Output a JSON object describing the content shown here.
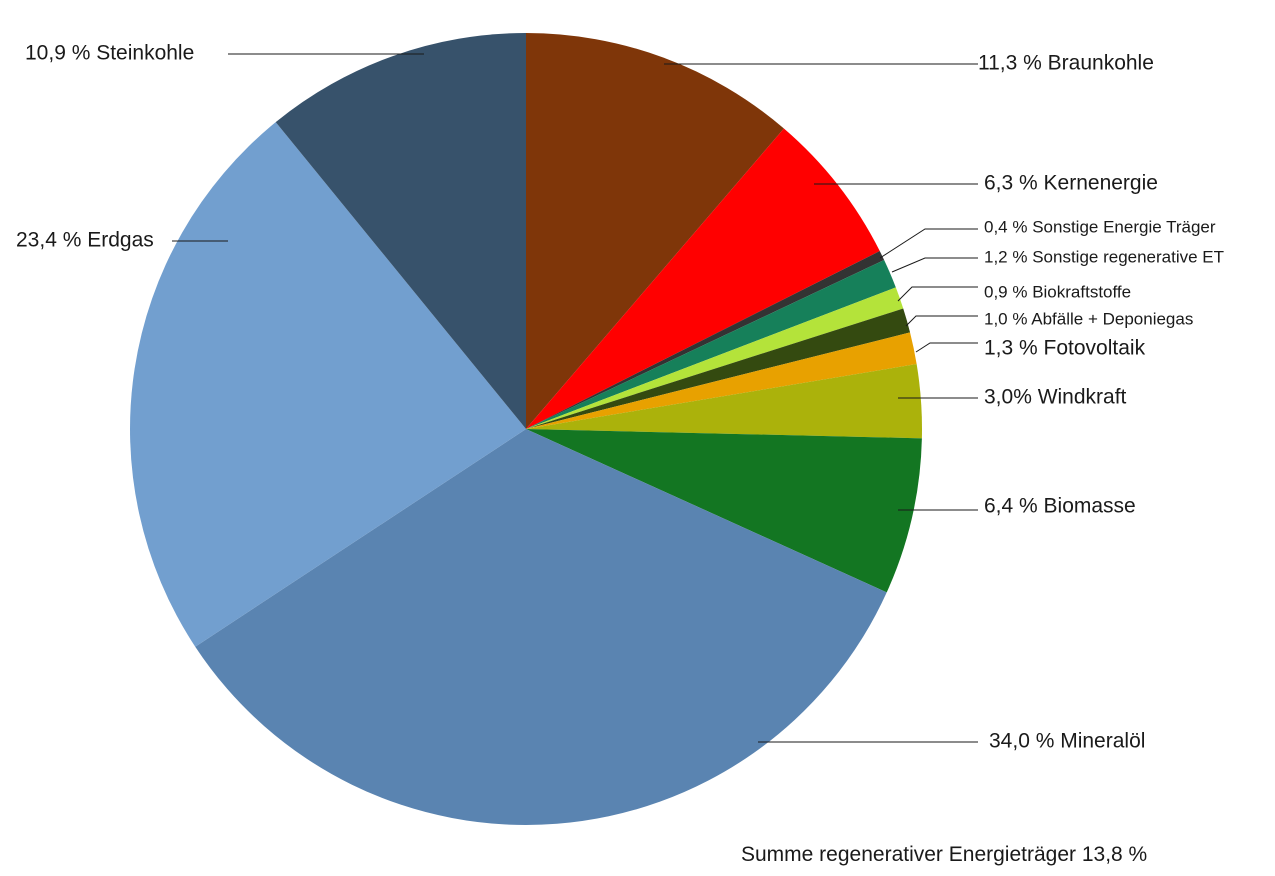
{
  "chart_data": {
    "type": "pie",
    "start_angle_deg": 0,
    "direction": "clockwise",
    "slices": [
      {
        "name": "Braunkohle",
        "value": 11.3,
        "label": "11,3 % Braunkohle",
        "color": "#7F3609"
      },
      {
        "name": "Kernenergie",
        "value": 6.3,
        "label": "6,3 % Kernenergie",
        "color": "#FF0000"
      },
      {
        "name": "Sonstige Energie Träger",
        "value": 0.4,
        "label": "0,4 % Sonstige Energie Träger",
        "color": "#333333"
      },
      {
        "name": "Sonstige regenerative ET",
        "value": 1.2,
        "label": "1,2 % Sonstige regenerative ET",
        "color": "#16805A"
      },
      {
        "name": "Biokraftstoffe",
        "value": 0.9,
        "label": "0,9 % Biokraftstoffe",
        "color": "#B4E33A"
      },
      {
        "name": "Abfälle + Deponiegas",
        "value": 1.0,
        "label": "1,0 % Abfälle + Deponiegas",
        "color": "#344A10"
      },
      {
        "name": "Fotovoltaik",
        "value": 1.3,
        "label": "1,3 % Fotovoltaik",
        "color": "#E8A100"
      },
      {
        "name": "Windkraft",
        "value": 3.0,
        "label": "3,0% Windkraft",
        "color": "#ABB20B"
      },
      {
        "name": "Biomasse",
        "value": 6.4,
        "label": "6,4 % Biomasse",
        "color": "#137622"
      },
      {
        "name": "Mineralöl",
        "value": 34.0,
        "label": "34,0 % Mineralöl",
        "color": "#5A84B1"
      },
      {
        "name": "Erdgas",
        "value": 23.4,
        "label": "23,4 % Erdgas",
        "color": "#729FCF"
      },
      {
        "name": "Steinkohle",
        "value": 10.9,
        "label": "10,9 % Steinkohle",
        "color": "#37526B"
      }
    ],
    "annotation": "Summe regenerativer Energieträger 13,8 %"
  }
}
